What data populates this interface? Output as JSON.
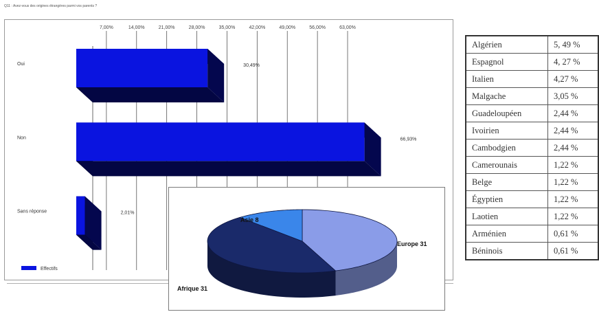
{
  "question": "Q11 : Avez-vous des origines étrangères parmi vos parents ?",
  "chart_data": [
    {
      "type": "bar",
      "orientation": "horizontal",
      "style": "3d",
      "categories": [
        "Oui",
        "Non",
        "Sans réponse"
      ],
      "series": [
        {
          "name": "Effectifs",
          "values": [
            30.49,
            66.93,
            2.01
          ],
          "color": "#0a14e0"
        }
      ],
      "value_labels": [
        "30,49%",
        "66,93%",
        "2,01%"
      ],
      "x_ticks": [
        7,
        14,
        21,
        28,
        35,
        42,
        49,
        56,
        63
      ],
      "x_tick_labels": [
        "7,00%",
        "14,00%",
        "21,00%",
        "28,00%",
        "35,00%",
        "42,00%",
        "49,00%",
        "56,00%",
        "63,00%"
      ],
      "xlim": [
        0,
        70
      ],
      "grid": true,
      "legend_position": "bottom-left"
    },
    {
      "type": "pie",
      "style": "3d",
      "slices": [
        {
          "label": "Europe",
          "value": 31,
          "text": "Europe 31",
          "color": "#8a9ce8"
        },
        {
          "label": "Afrique",
          "value": 31,
          "text": "Afrique 31",
          "color": "#1a2a6a"
        },
        {
          "label": "Asie",
          "value": 8,
          "text": "Asie 8",
          "color": "#3a86ea"
        }
      ]
    },
    {
      "type": "table",
      "rows": [
        {
          "name": "Algérien",
          "pct": "5, 49 %"
        },
        {
          "name": "Espagnol",
          "pct": "4, 27 %"
        },
        {
          "name": "Italien",
          "pct": "4,27 %"
        },
        {
          "name": "Malgache",
          "pct": "3,05 %"
        },
        {
          "name": "Guadeloupéen",
          "pct": "2,44 %"
        },
        {
          "name": "Ivoirien",
          "pct": "2,44 %"
        },
        {
          "name": "Cambodgien",
          "pct": "2,44 %"
        },
        {
          "name": "Camerounais",
          "pct": "1,22 %"
        },
        {
          "name": "Belge",
          "pct": "1,22 %"
        },
        {
          "name": "Égyptien",
          "pct": "1,22 %"
        },
        {
          "name": "Laotien",
          "pct": "1,22 %"
        },
        {
          "name": "Arménien",
          "pct": "0,61 %"
        },
        {
          "name": "Béninois",
          "pct": "0,61 %"
        }
      ]
    }
  ]
}
